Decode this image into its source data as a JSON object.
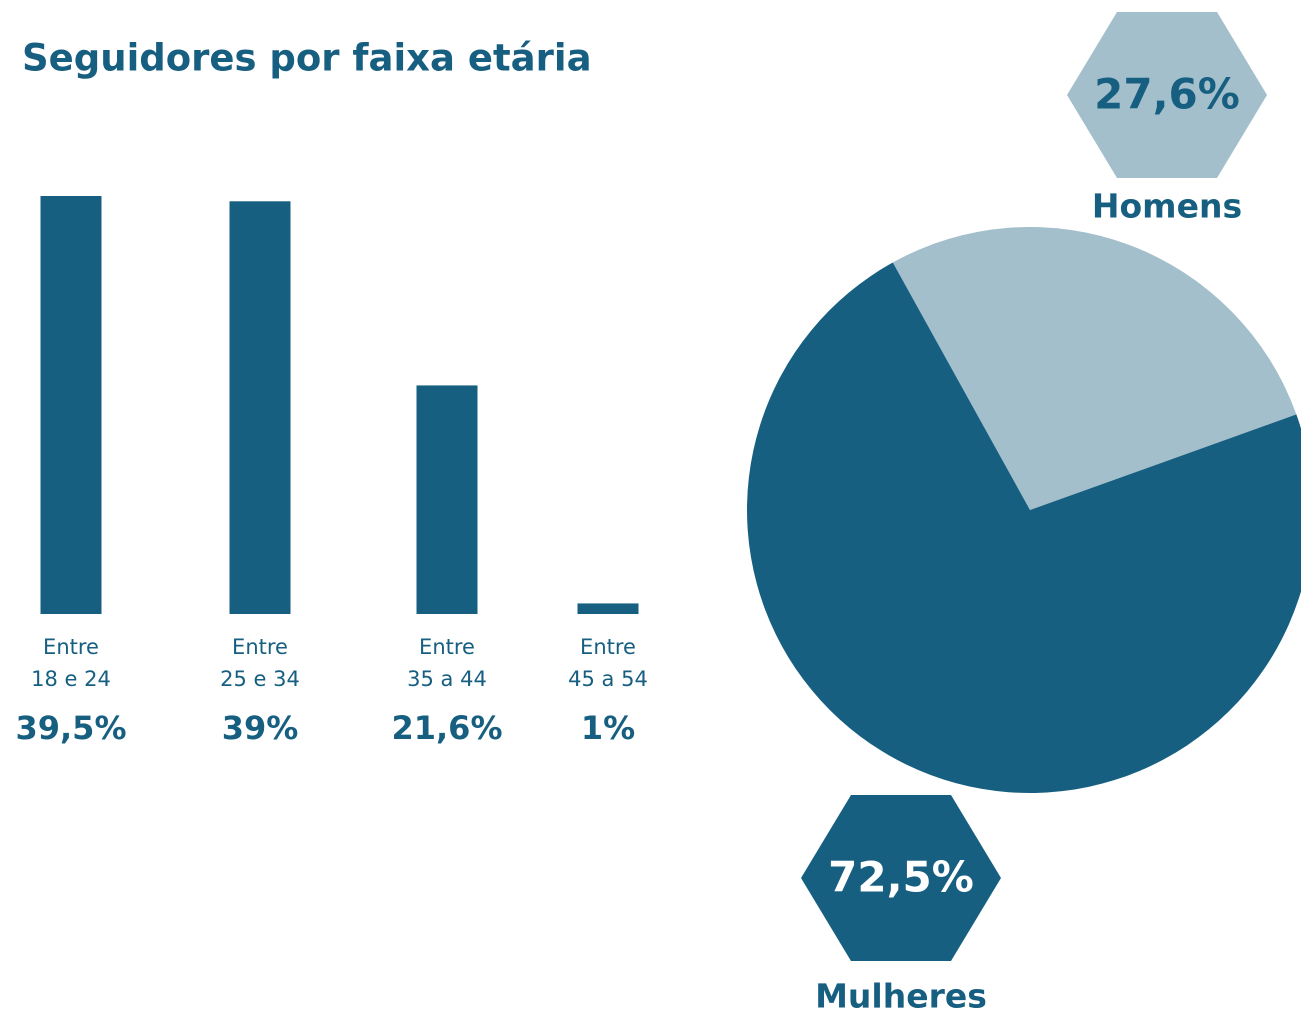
{
  "chart_data": [
    {
      "type": "bar",
      "title": "Seguidores por faixa etária",
      "categories": [
        "Entre\n18 e 24",
        "Entre\n25 e 34",
        "Entre\n35 a 44",
        "Entre\n45 a 54"
      ],
      "values": [
        39.5,
        39,
        21.6,
        1
      ],
      "value_labels": [
        "39,5%",
        "39%",
        "21,6%",
        "1%"
      ],
      "color": "#175f80"
    },
    {
      "type": "pie",
      "categories": [
        "Homens",
        "Mulheres"
      ],
      "values": [
        27.6,
        72.5
      ],
      "value_labels": [
        "27,6%",
        "72,5%"
      ],
      "colors": [
        "#a3bfcc",
        "#175f80"
      ]
    }
  ]
}
